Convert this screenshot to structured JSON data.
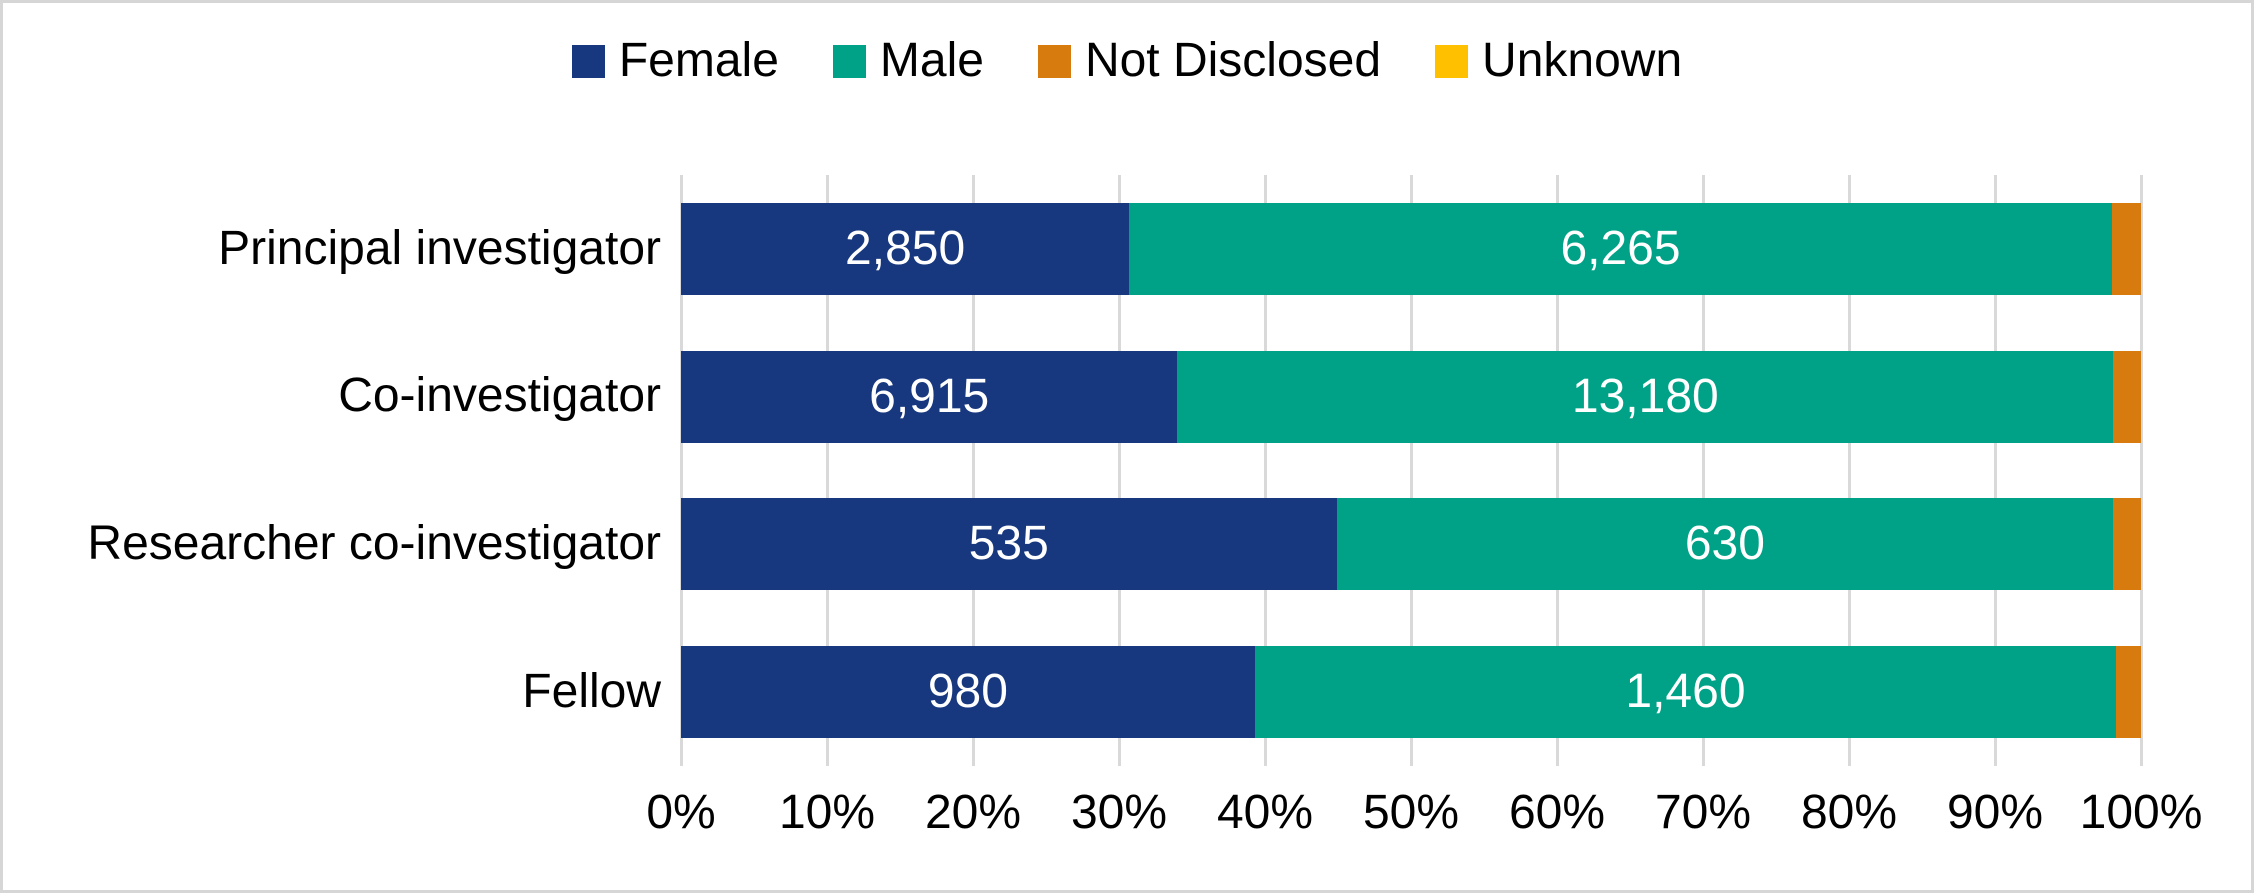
{
  "chart_data": {
    "type": "bar",
    "variant": "horizontal-stacked-100pct",
    "title": "",
    "xlabel": "",
    "ylabel": "",
    "xlim": [
      0,
      100
    ],
    "grid": "vertical",
    "gridline_color": "#d9d9d9",
    "legend_position": "top",
    "value_label_color": "#ffffff",
    "categories": [
      "Principal investigator",
      "Co-investigator",
      "Researcher co-investigator",
      "Fellow"
    ],
    "series": [
      {
        "name": "Female",
        "color": "#17387f",
        "values": [
          2850,
          6915,
          535,
          980
        ],
        "value_labels": [
          "2,850",
          "6,915",
          "535",
          "980"
        ],
        "pcts_est": [
          30.7,
          34.0,
          44.9,
          39.3
        ]
      },
      {
        "name": "Male",
        "color": "#00a287",
        "values": [
          6265,
          13180,
          630,
          1460
        ],
        "value_labels": [
          "6,265",
          "13,180",
          "630",
          "1,460"
        ],
        "pcts_est": [
          67.3,
          64.1,
          53.2,
          59.0
        ]
      },
      {
        "name": "Not Disclosed",
        "color": "#d87b0f",
        "value_labels": [
          "",
          "",
          "",
          ""
        ],
        "pcts_est": [
          2.0,
          1.9,
          1.9,
          1.7
        ]
      },
      {
        "name": "Unknown",
        "color": "#ffc000",
        "value_labels": [
          "",
          "",
          "",
          ""
        ],
        "pcts_est": [
          0,
          0,
          0,
          0
        ]
      }
    ],
    "x_ticks": [
      "0%",
      "10%",
      "20%",
      "30%",
      "40%",
      "50%",
      "60%",
      "70%",
      "80%",
      "90%",
      "100%"
    ]
  },
  "legend": {
    "items": [
      {
        "label": "Female",
        "color": "#17387f"
      },
      {
        "label": "Male",
        "color": "#00a287"
      },
      {
        "label": "Not Disclosed",
        "color": "#d87b0f"
      },
      {
        "label": "Unknown",
        "color": "#ffc000"
      }
    ]
  }
}
